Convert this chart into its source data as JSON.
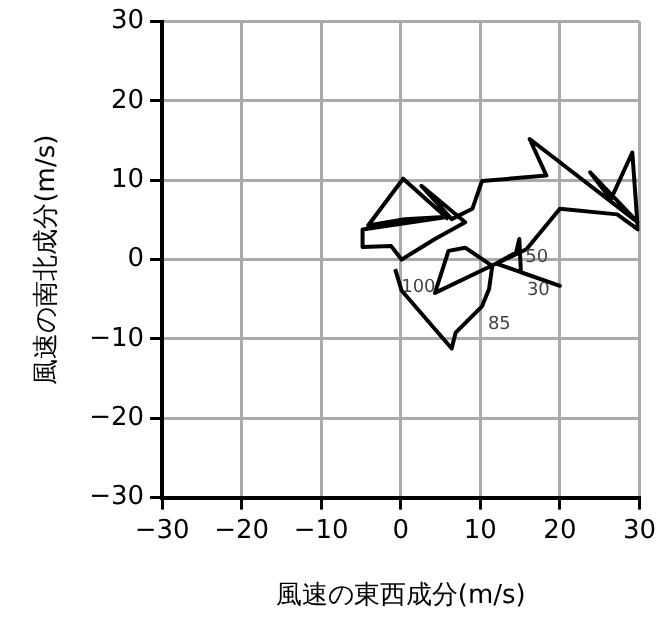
{
  "chart_data": {
    "type": "line",
    "xlabel": "風速の東西成分(m/s)",
    "ylabel": "風速の南北成分(m/s)",
    "series": [
      {
        "color": "#000000",
        "x": [
          -0.7,
          0.1,
          6.4,
          6.9,
          10.2,
          11.1,
          11.5,
          8.1,
          6.0,
          4.3,
          12,
          14.5,
          14.9,
          15.1,
          20,
          12,
          15.8,
          20,
          27.2,
          29.8,
          29.1,
          26.4,
          23.8,
          29.8,
          16.2,
          18.3,
          10.2,
          9,
          6.4,
          2.6,
          8.1,
          4.3,
          0.1,
          -1.2,
          -4.8,
          -4.8,
          6,
          0.5,
          -4.1,
          0.3,
          6
        ],
        "values": [
          -1.2,
          -3.9,
          -11.2,
          -9.2,
          -5.9,
          -3.7,
          -0.8,
          1.5,
          1.1,
          -4.2,
          -0.5,
          0.9,
          2.6,
          -1.6,
          -3.3,
          -0.5,
          1.3,
          6.4,
          5.7,
          3.8,
          13.5,
          7.6,
          11,
          4.7,
          15.2,
          10.6,
          9.9,
          6.4,
          5.1,
          9.3,
          4.7,
          2.6,
          0,
          1.7,
          1.6,
          3.8,
          5.4,
          5.1,
          4.3,
          10.2,
          5.1
        ]
      }
    ],
    "annotations": [
      {
        "text": "100",
        "x": -0.7,
        "y": -1.2
      },
      {
        "text": "85",
        "x": 10.2,
        "y": -5.9
      },
      {
        "text": "50",
        "x": 14.9,
        "y": 2.6
      },
      {
        "text": "30",
        "x": 15.1,
        "y": -1.6
      }
    ],
    "xlim": [
      -30,
      30
    ],
    "ylim": [
      -30,
      30
    ],
    "xticks": [
      -30,
      -20,
      -10,
      0,
      10,
      20,
      30
    ],
    "yticks": [
      -30,
      -20,
      -10,
      0,
      10,
      20,
      30
    ],
    "grid": true,
    "legend": false,
    "marker": "none",
    "line_style": "solid"
  }
}
